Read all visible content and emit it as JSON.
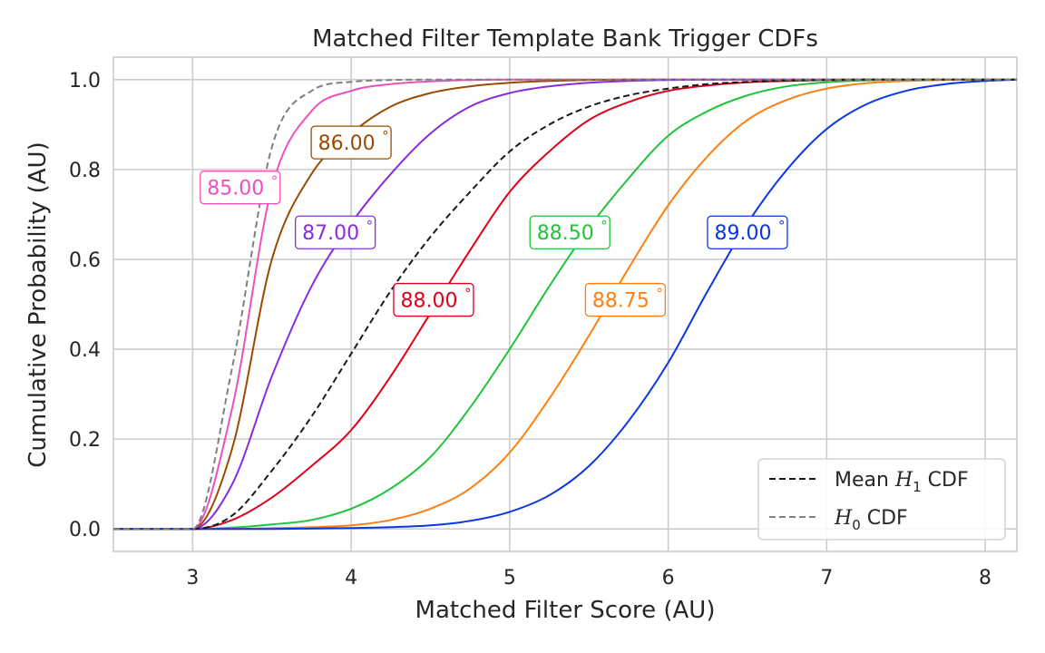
{
  "chart_data": {
    "type": "line",
    "title": "Matched Filter Template Bank Trigger CDFs",
    "xlabel": "Matched Filter Score (AU)",
    "ylabel": "Cumulative Probability (AU)",
    "xlim": [
      2.5,
      8.2
    ],
    "ylim": [
      -0.05,
      1.05
    ],
    "x_ticks": [
      "3",
      "4",
      "5",
      "6",
      "7",
      "8"
    ],
    "y_ticks": [
      "0.0",
      "0.2",
      "0.4",
      "0.6",
      "0.8",
      "1.0"
    ],
    "grid": true,
    "legend_position": "bottom-right",
    "x": [
      2.5,
      3.0,
      3.25,
      3.5,
      3.75,
      4.0,
      4.25,
      4.5,
      4.75,
      5.0,
      5.25,
      5.5,
      5.75,
      6.0,
      6.25,
      6.5,
      6.75,
      7.0,
      7.25,
      7.5,
      7.75,
      8.0,
      8.2
    ],
    "series": [
      {
        "name": "85.00°",
        "color": "#ef4fbf",
        "dash": "solid",
        "values": [
          0,
          0,
          0.27,
          0.76,
          0.93,
          0.975,
          0.99,
          0.996,
          0.999,
          1.0,
          1.0,
          1.0,
          1.0,
          1.0,
          1.0,
          1.0,
          1.0,
          1.0,
          1.0,
          1.0,
          1.0,
          1.0,
          1.0
        ]
      },
      {
        "name": "86.00°",
        "color": "#9b4a00",
        "dash": "solid",
        "values": [
          0,
          0,
          0.18,
          0.6,
          0.79,
          0.88,
          0.94,
          0.97,
          0.985,
          0.993,
          0.997,
          0.999,
          1.0,
          1.0,
          1.0,
          1.0,
          1.0,
          1.0,
          1.0,
          1.0,
          1.0,
          1.0,
          1.0
        ]
      },
      {
        "name": "87.00°",
        "color": "#8a2be2",
        "dash": "solid",
        "values": [
          0,
          0,
          0.1,
          0.34,
          0.54,
          0.68,
          0.79,
          0.88,
          0.94,
          0.97,
          0.985,
          0.993,
          0.997,
          0.999,
          1.0,
          1.0,
          1.0,
          1.0,
          1.0,
          1.0,
          1.0,
          1.0,
          1.0
        ]
      },
      {
        "name": "88.00°",
        "color": "#e0001a",
        "dash": "solid",
        "values": [
          0,
          0,
          0.02,
          0.07,
          0.14,
          0.22,
          0.34,
          0.48,
          0.62,
          0.75,
          0.84,
          0.91,
          0.95,
          0.975,
          0.987,
          0.994,
          0.997,
          0.999,
          1.0,
          1.0,
          1.0,
          1.0,
          1.0
        ]
      },
      {
        "name": "88.50°",
        "color": "#1ec43a",
        "dash": "solid",
        "values": [
          0,
          0,
          0.003,
          0.01,
          0.02,
          0.045,
          0.09,
          0.16,
          0.27,
          0.4,
          0.54,
          0.67,
          0.78,
          0.875,
          0.93,
          0.965,
          0.985,
          0.994,
          0.998,
          1.0,
          1.0,
          1.0,
          1.0
        ]
      },
      {
        "name": "88.75°",
        "color": "#ff7f0e",
        "dash": "solid",
        "values": [
          0,
          0,
          0,
          0.002,
          0.004,
          0.008,
          0.02,
          0.045,
          0.09,
          0.17,
          0.29,
          0.43,
          0.58,
          0.72,
          0.83,
          0.91,
          0.955,
          0.98,
          0.992,
          0.997,
          0.999,
          1.0,
          1.0
        ]
      },
      {
        "name": "89.00°",
        "color": "#0a36e6",
        "dash": "solid",
        "values": [
          0,
          0,
          0,
          0,
          0.001,
          0.002,
          0.004,
          0.008,
          0.018,
          0.038,
          0.075,
          0.14,
          0.24,
          0.37,
          0.53,
          0.68,
          0.8,
          0.89,
          0.945,
          0.975,
          0.99,
          0.997,
          1.0
        ]
      },
      {
        "name": "Mean $\\mathcal{H}_1$ CDF",
        "color": "#1a1a1a",
        "dash": "dashed",
        "values": [
          0,
          0,
          0.03,
          0.13,
          0.25,
          0.39,
          0.53,
          0.65,
          0.75,
          0.84,
          0.9,
          0.94,
          0.965,
          0.98,
          0.99,
          0.995,
          0.998,
          0.999,
          1.0,
          1.0,
          1.0,
          1.0,
          1.0
        ]
      },
      {
        "name": "$\\mathcal{H}_0$ CDF",
        "color": "#7f7f7f",
        "dash": "dashed",
        "values": [
          0,
          0,
          0.36,
          0.85,
          0.975,
          0.995,
          0.999,
          1.0,
          1.0,
          1.0,
          1.0,
          1.0,
          1.0,
          1.0,
          1.0,
          1.0,
          1.0,
          1.0,
          1.0,
          1.0,
          1.0,
          1.0,
          1.0
        ]
      }
    ],
    "annotations": [
      {
        "text": "85.00",
        "series": "85.00°",
        "x": 3.3,
        "y": 0.76
      },
      {
        "text": "86.00",
        "series": "86.00°",
        "x": 4.0,
        "y": 0.86
      },
      {
        "text": "87.00",
        "series": "87.00°",
        "x": 3.9,
        "y": 0.66
      },
      {
        "text": "88.00",
        "series": "88.00°",
        "x": 4.52,
        "y": 0.51
      },
      {
        "text": "88.50",
        "series": "88.50°",
        "x": 5.38,
        "y": 0.66
      },
      {
        "text": "88.75",
        "series": "88.75°",
        "x": 5.73,
        "y": 0.51
      },
      {
        "text": "89.00",
        "series": "89.00°",
        "x": 6.5,
        "y": 0.66
      }
    ],
    "legend": [
      {
        "label_main": "Mean ",
        "label_script": "H",
        "label_sub": "1",
        "label_tail": " CDF",
        "series": "Mean $\\mathcal{H}_1$ CDF"
      },
      {
        "label_main": "",
        "label_script": "H",
        "label_sub": "0",
        "label_tail": " CDF",
        "series": "$\\mathcal{H}_0$ CDF"
      }
    ],
    "degree_symbol": "°"
  }
}
